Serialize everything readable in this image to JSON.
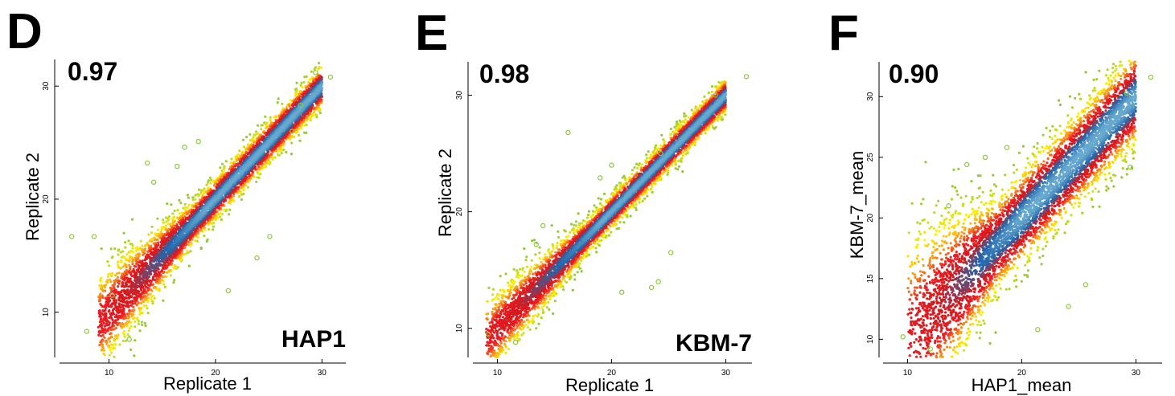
{
  "panels": [
    {
      "letter": "D",
      "corr": "0.97",
      "cell_label": "HAP1"
    },
    {
      "letter": "E",
      "corr": "0.98",
      "cell_label": "KBM-7"
    },
    {
      "letter": "F",
      "corr": "0.90",
      "cell_label": ""
    }
  ],
  "colors": {
    "outlier": "#8cc63f",
    "density_ramp": [
      "#8cc63f",
      "#fff200",
      "#f7941d",
      "#ed1c24",
      "#d7191c",
      "#2166ac",
      "#67a9cf"
    ]
  },
  "chart_data": [
    {
      "type": "scatter",
      "title": "",
      "xlabel": "Replicate 1",
      "ylabel": "Replicate 2",
      "xlim": [
        5.5,
        33
      ],
      "ylim": [
        6,
        32.5
      ],
      "x_ticks": [
        10,
        20,
        30
      ],
      "y_ticks": [
        10,
        20,
        30
      ],
      "coloring": "point density (green = sparse, yellow, orange, red, dark blue = densest)",
      "correlation": 0.97,
      "trend": {
        "slope": 1.0,
        "intercept": 0.0,
        "spread": 0.9,
        "x_range": [
          9,
          30
        ]
      },
      "points": [
        {
          "x": 6.5,
          "y": 16.7
        },
        {
          "x": 7.9,
          "y": 8.3
        },
        {
          "x": 8.6,
          "y": 16.7
        },
        {
          "x": 10.3,
          "y": 11.5
        },
        {
          "x": 11.9,
          "y": 7.6
        },
        {
          "x": 13.6,
          "y": 23.2
        },
        {
          "x": 14.2,
          "y": 21.5
        },
        {
          "x": 16.4,
          "y": 22.9
        },
        {
          "x": 17.1,
          "y": 24.6
        },
        {
          "x": 18.4,
          "y": 25.1
        },
        {
          "x": 21.2,
          "y": 11.9
        },
        {
          "x": 23.9,
          "y": 14.8
        },
        {
          "x": 25.1,
          "y": 16.7
        },
        {
          "x": 29.4,
          "y": 31.2
        },
        {
          "x": 30.8,
          "y": 30.8
        },
        {
          "x": 27.2,
          "y": 26.0
        },
        {
          "x": 28.0,
          "y": 28.3
        }
      ]
    },
    {
      "type": "scatter",
      "title": "",
      "xlabel": "Replicate 1",
      "ylabel": "Replicate 2",
      "xlim": [
        8,
        33
      ],
      "ylim": [
        7.5,
        33
      ],
      "x_ticks": [
        10,
        20,
        30
      ],
      "y_ticks": [
        10,
        20,
        30
      ],
      "coloring": "point density (green = sparse, yellow, orange, red, dark blue = densest)",
      "correlation": 0.98,
      "trend": {
        "slope": 1.0,
        "intercept": 0.0,
        "spread": 0.7,
        "x_range": [
          9,
          30
        ]
      },
      "points": [
        {
          "x": 9.2,
          "y": 9.5
        },
        {
          "x": 11.6,
          "y": 8.8
        },
        {
          "x": 13.4,
          "y": 17.2
        },
        {
          "x": 14.0,
          "y": 18.8
        },
        {
          "x": 16.2,
          "y": 26.8
        },
        {
          "x": 19.0,
          "y": 22.9
        },
        {
          "x": 20.0,
          "y": 24.0
        },
        {
          "x": 24.3,
          "y": 25.0
        },
        {
          "x": 24.1,
          "y": 14.0
        },
        {
          "x": 20.9,
          "y": 13.1
        },
        {
          "x": 23.5,
          "y": 13.5
        },
        {
          "x": 31.8,
          "y": 31.6
        },
        {
          "x": 29.1,
          "y": 30.0
        },
        {
          "x": 25.2,
          "y": 16.5
        }
      ]
    },
    {
      "type": "scatter",
      "title": "",
      "xlabel": "HAP1_mean",
      "ylabel": "KBM-7_mean",
      "xlim": [
        8,
        33
      ],
      "ylim": [
        8.5,
        33
      ],
      "x_ticks": [
        10,
        20,
        30
      ],
      "y_ticks": [
        10,
        15,
        20,
        25,
        30
      ],
      "coloring": "point density (green = sparse, yellow, orange, red, dark blue = densest)",
      "correlation": 0.9,
      "trend": {
        "slope": 1.0,
        "intercept": 0.0,
        "spread": 1.9,
        "x_range": [
          10,
          30
        ]
      },
      "points": [
        {
          "x": 9.6,
          "y": 10.2
        },
        {
          "x": 12.0,
          "y": 9.2
        },
        {
          "x": 13.6,
          "y": 21.0
        },
        {
          "x": 15.2,
          "y": 24.4
        },
        {
          "x": 16.8,
          "y": 25.0
        },
        {
          "x": 18.7,
          "y": 25.8
        },
        {
          "x": 21.4,
          "y": 10.8
        },
        {
          "x": 24.1,
          "y": 12.7
        },
        {
          "x": 25.6,
          "y": 14.5
        },
        {
          "x": 29.5,
          "y": 24.2
        },
        {
          "x": 31.3,
          "y": 31.6
        },
        {
          "x": 29.2,
          "y": 30.3
        }
      ]
    }
  ]
}
